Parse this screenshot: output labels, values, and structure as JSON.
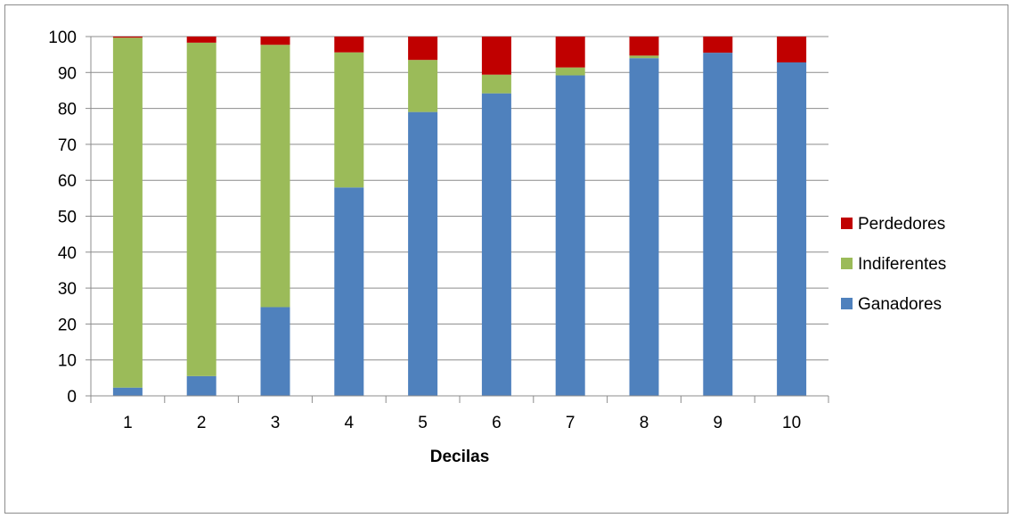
{
  "chart_data": {
    "type": "bar",
    "stacked": true,
    "title": "",
    "xlabel": "Decilas",
    "ylabel": "",
    "ylim": [
      0,
      100
    ],
    "yticks": [
      0,
      10,
      20,
      30,
      40,
      50,
      60,
      70,
      80,
      90,
      100
    ],
    "grid": true,
    "legend_position": "right",
    "categories": [
      "1",
      "2",
      "3",
      "4",
      "5",
      "6",
      "7",
      "8",
      "9",
      "10"
    ],
    "series": [
      {
        "name": "Ganadores",
        "color": "#4f81bd",
        "values": [
          2.3,
          5.5,
          24.7,
          58.0,
          79.0,
          84.2,
          89.2,
          94.0,
          95.5,
          92.8
        ]
      },
      {
        "name": "Indiferentes",
        "color": "#9bbb59",
        "values": [
          97.4,
          92.8,
          73.0,
          37.6,
          14.5,
          5.2,
          2.2,
          0.7,
          0.0,
          0.0
        ]
      },
      {
        "name": "Perdedores",
        "color": "#c00000",
        "values": [
          0.3,
          1.7,
          2.3,
          4.4,
          6.5,
          10.6,
          8.6,
          5.3,
          4.5,
          7.2
        ]
      }
    ],
    "legend_order": [
      "Perdedores",
      "Indiferentes",
      "Ganadores"
    ]
  }
}
